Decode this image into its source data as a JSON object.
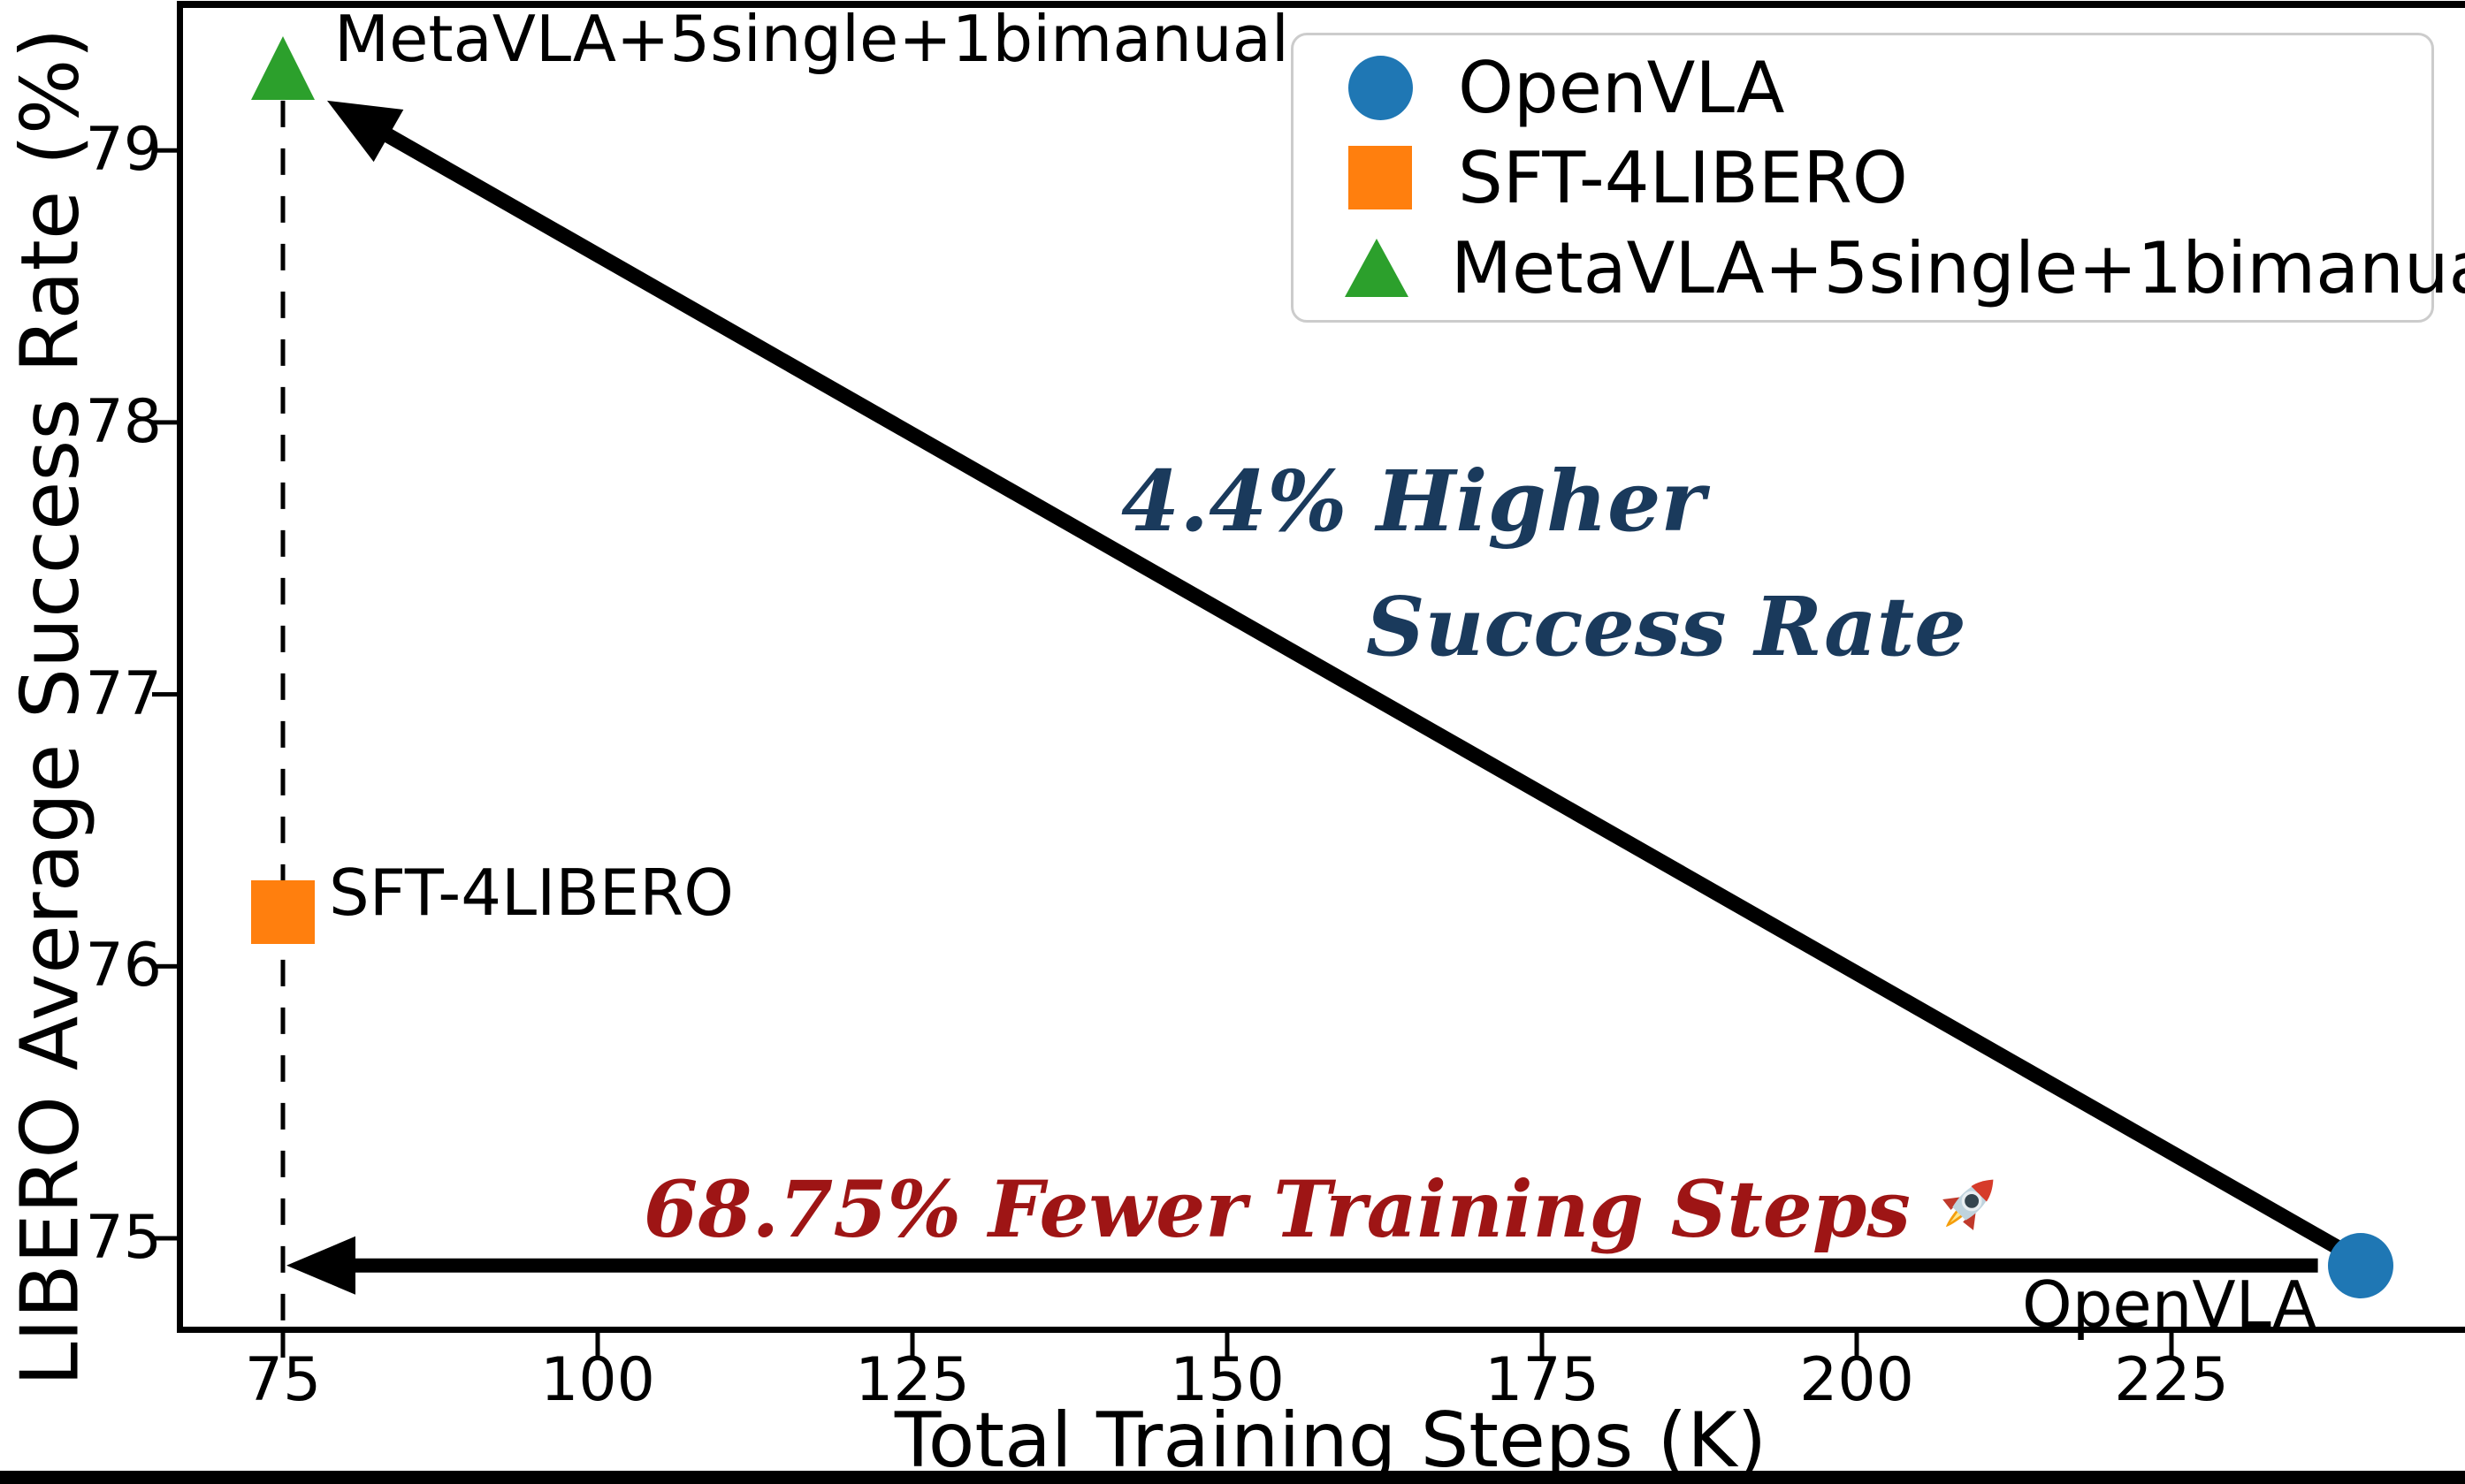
{
  "chart_data": {
    "type": "scatter",
    "xlabel": "Total Training Steps (K)",
    "ylabel": "LIBERO Average Success Rate (%)",
    "xlim": [
      67,
      248
    ],
    "ylim": [
      74.66,
      79.55
    ],
    "x_ticks": [
      "75",
      "100",
      "125",
      "150",
      "175",
      "200",
      "225"
    ],
    "x_tick_values": [
      75,
      100,
      125,
      150,
      175,
      200,
      225
    ],
    "y_ticks": [
      "75",
      "76",
      "77",
      "78",
      "79"
    ],
    "y_tick_values": [
      75,
      76,
      77,
      78,
      79
    ],
    "grid": false,
    "legend_position": "upper right",
    "series": [
      {
        "name": "OpenVLA",
        "marker": "circle",
        "color": "#1f77b4",
        "point_label": "OpenVLA",
        "x": 240,
        "y": 74.9
      },
      {
        "name": "SFT-4LIBERO",
        "marker": "square",
        "color": "#ff7f0e",
        "point_label": "SFT-4LIBERO",
        "x": 75,
        "y": 76.2
      },
      {
        "name": "MetaVLA+5single+1bimanual",
        "marker": "triangle",
        "color": "#2ca02c",
        "point_label": "MetaVLA+5single+1bimanual",
        "x": 75,
        "y": 79.3
      }
    ],
    "reference_line": {
      "type": "vertical-dashed",
      "x": 75,
      "color": "#000000"
    },
    "annotations": [
      {
        "id": "higher-success-rate",
        "line1": "4.4% Higher",
        "line2": "Success Rate",
        "color": "#1a3a5c"
      },
      {
        "id": "fewer-training-steps",
        "text": "68.75% Fewer Training Steps",
        "emoji": "🚀",
        "color": "#9e1515"
      }
    ],
    "arrows": [
      {
        "from_series": "OpenVLA",
        "to_series": "MetaVLA+5single+1bimanual",
        "color": "#000000"
      },
      {
        "from_series": "OpenVLA",
        "to_x": 75,
        "direction": "horizontal-left",
        "color": "#000000"
      }
    ]
  },
  "figure": {
    "background": "#ffffff",
    "spine_color": "#000000",
    "legend_border_color": "#cccccc"
  }
}
